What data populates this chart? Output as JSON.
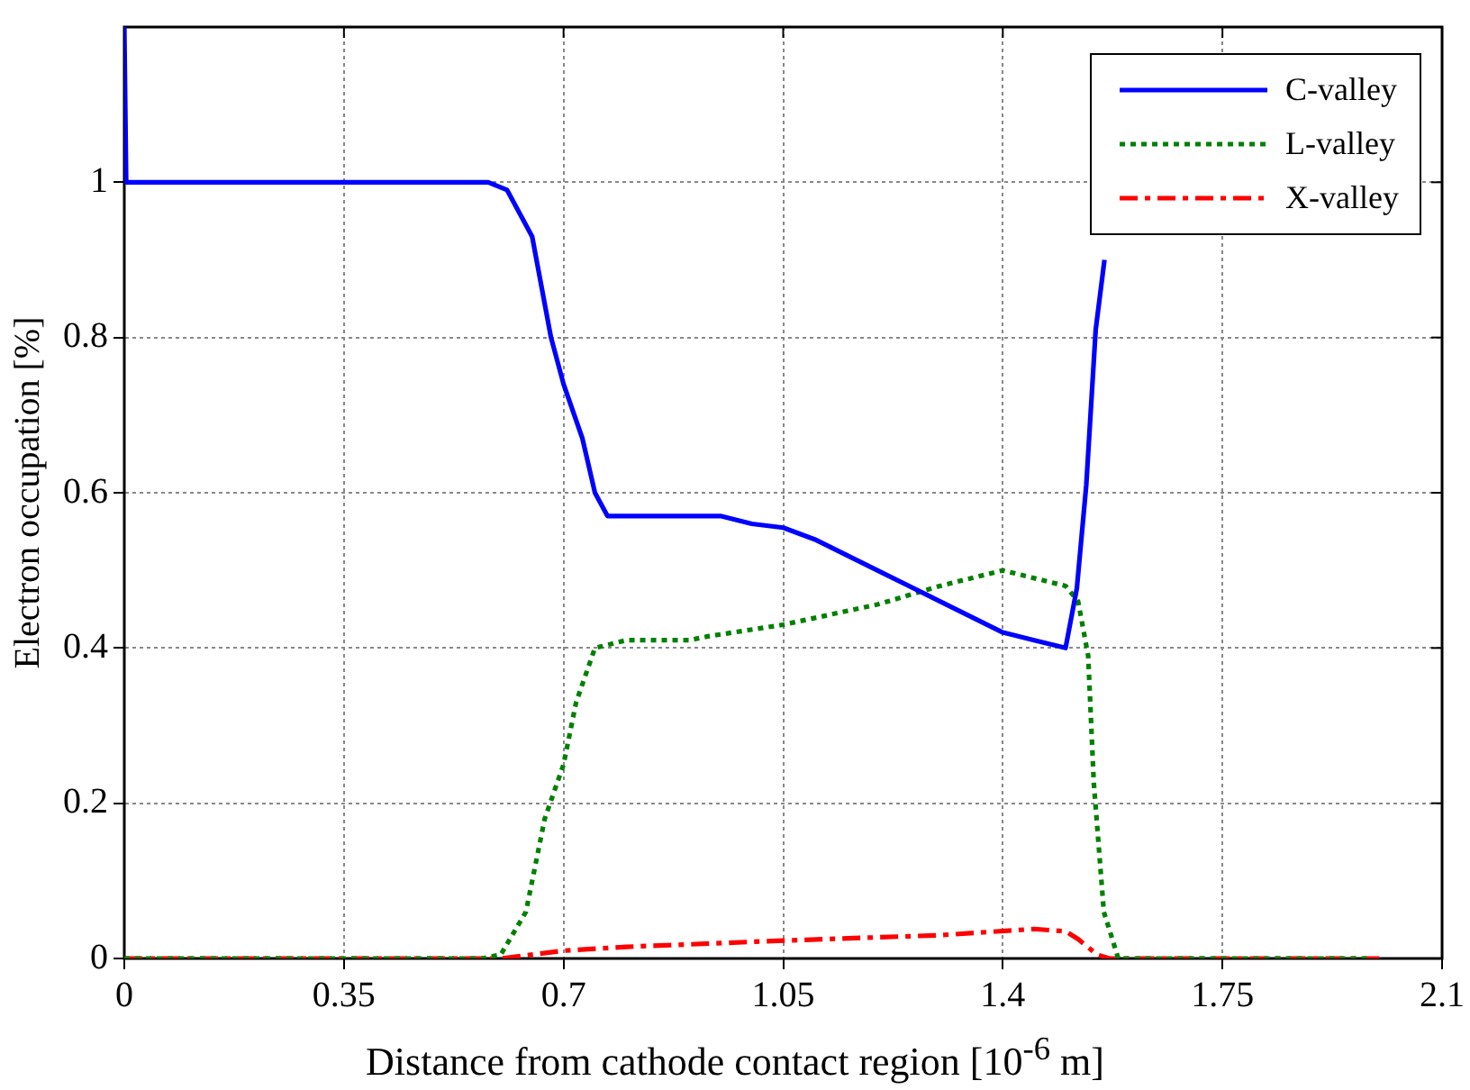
{
  "chart_data": {
    "type": "line",
    "xlabel": "Distance from cathode contact region [10$^{-6}$ m]",
    "ylabel": "Electron occupation [%]",
    "xlim": [
      0,
      2.1
    ],
    "xticks": [
      0,
      0.35,
      0.7,
      1.05,
      1.4,
      1.75,
      2.1
    ],
    "ylim": [
      0,
      1.2
    ],
    "yticks": [
      0,
      0.2,
      0.4,
      0.6,
      0.8,
      1
    ],
    "grid": true,
    "legend": "top right",
    "marker": "none",
    "series": [
      {
        "name": "C-valley",
        "color": "#0000ff",
        "line_style": "solid",
        "x": [
          0,
          0.003,
          0.1,
          0.3,
          0.52,
          0.58,
          0.61,
          0.65,
          0.68,
          0.7,
          0.73,
          0.75,
          0.77,
          0.8,
          0.9,
          0.95,
          1.0,
          1.05,
          1.1,
          1.2,
          1.3,
          1.4,
          1.45,
          1.5,
          1.518,
          1.533,
          1.548,
          1.562
        ],
        "values": [
          1.2,
          1,
          1,
          1,
          1,
          1,
          0.99,
          0.93,
          0.8,
          0.74,
          0.67,
          0.6,
          0.57,
          0.57,
          0.57,
          0.57,
          0.56,
          0.555,
          0.54,
          0.5,
          0.46,
          0.42,
          0.41,
          0.4,
          0.477,
          0.61,
          0.81,
          0.9
        ]
      },
      {
        "name": "L-valley",
        "color": "#008000",
        "line_style": "dotted",
        "x": [
          0,
          0.3,
          0.57,
          0.6,
          0.64,
          0.67,
          0.7,
          0.72,
          0.75,
          0.8,
          0.9,
          0.93,
          1.05,
          1.2,
          1.3,
          1.4,
          1.5,
          1.52,
          1.536,
          1.545,
          1.561,
          1.584,
          1.8,
          1.98
        ],
        "values": [
          0,
          0,
          0,
          0.005,
          0.06,
          0.18,
          0.25,
          0.33,
          0.4,
          0.41,
          0.41,
          0.415,
          0.43,
          0.456,
          0.48,
          0.5,
          0.48,
          0.46,
          0.39,
          0.226,
          0.06,
          0,
          0,
          0
        ]
      },
      {
        "name": "X-valley",
        "color": "#ff0000",
        "line_style": "dashed",
        "x": [
          0,
          0.3,
          0.6,
          0.7,
          0.8,
          1.05,
          1.3,
          1.45,
          1.5,
          1.52,
          1.55,
          1.57,
          1.8,
          2.0
        ],
        "values": [
          0,
          0,
          0,
          0.01,
          0.015,
          0.023,
          0.03,
          0.038,
          0.035,
          0.025,
          0.005,
          0,
          0,
          0
        ]
      }
    ]
  }
}
